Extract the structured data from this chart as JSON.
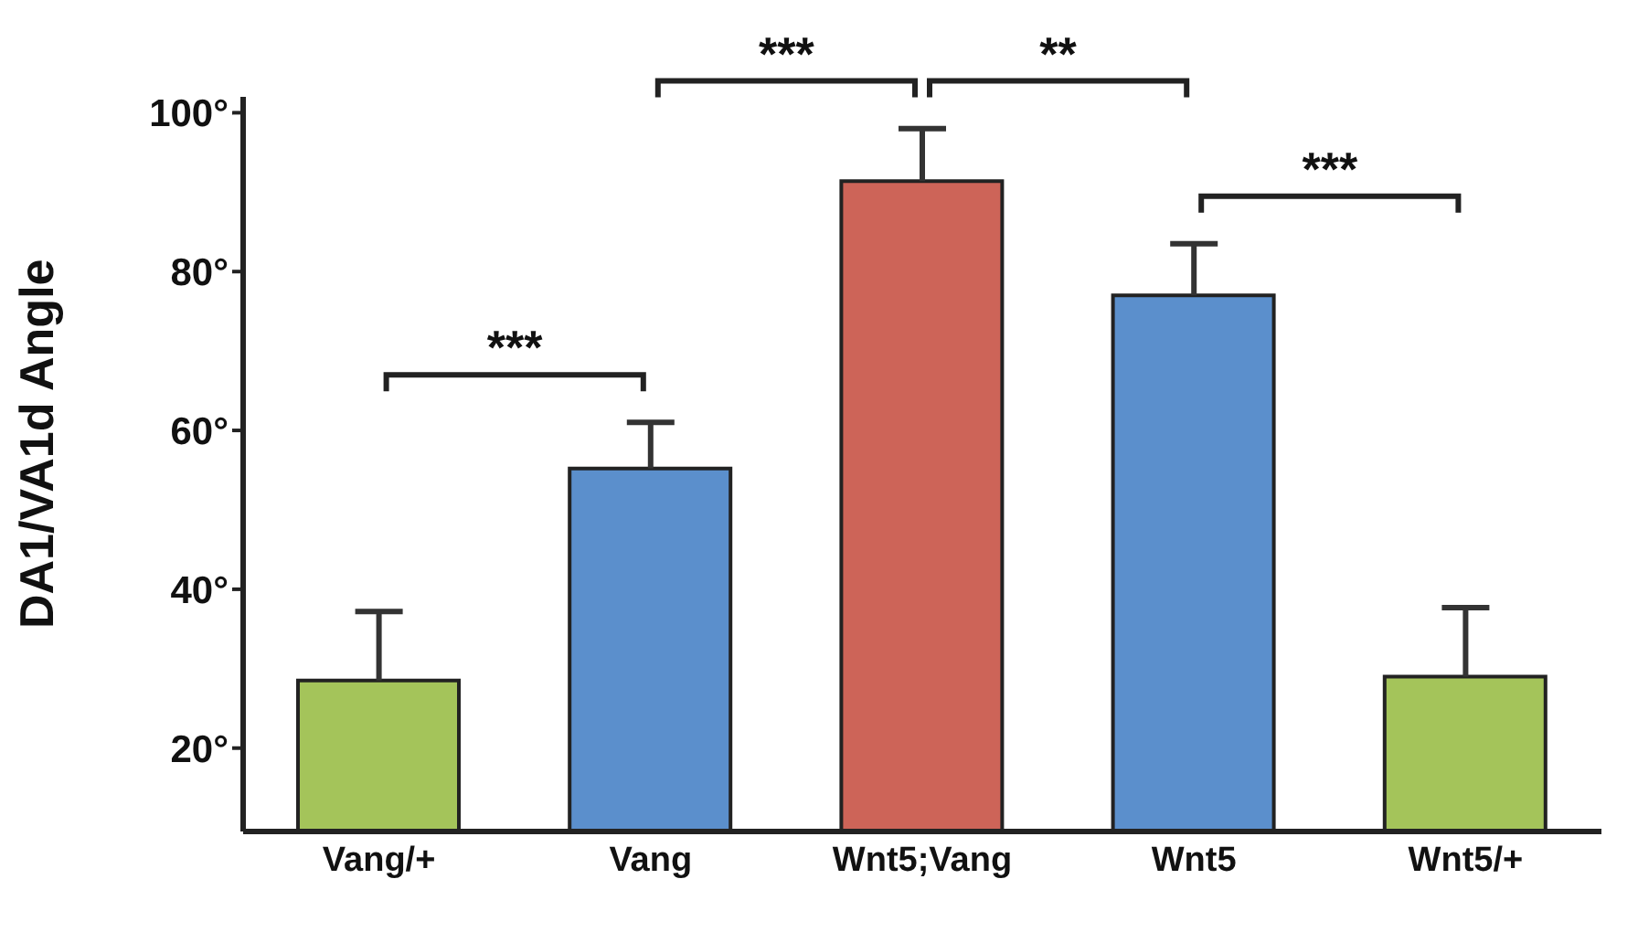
{
  "chart_data": {
    "type": "bar",
    "ylabel": "DA1/VA1d Angle",
    "categories": [
      "Vang/+",
      "Vang",
      "Wnt5;Vang",
      "Wnt5",
      "Wnt5/+"
    ],
    "values": [
      28.5,
      55.2,
      91.4,
      77,
      29
    ],
    "colors": [
      "#a4c45a",
      "#5b8fcc",
      "#cd6458",
      "#5b8fcc",
      "#a4c45a"
    ],
    "errors": [
      [
        28.5,
        37.2
      ],
      [
        55.2,
        61
      ],
      [
        91.4,
        98
      ],
      [
        77,
        83.5
      ],
      [
        29,
        37.7
      ]
    ],
    "ylim": [
      9.5,
      102
    ],
    "yticks": [
      {
        "value": 20,
        "label": "20°"
      },
      {
        "value": 40,
        "label": "40°"
      },
      {
        "value": 60,
        "label": "60°"
      },
      {
        "value": 80,
        "label": "80°"
      },
      {
        "value": 100,
        "label": "100°"
      }
    ],
    "annotations": [
      "***",
      "***",
      "**",
      "***"
    ],
    "grid": false,
    "legend": false
  }
}
